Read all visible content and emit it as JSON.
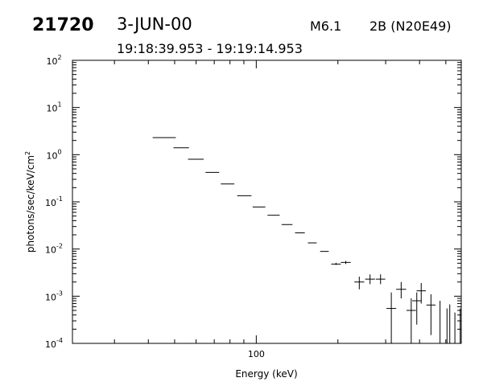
{
  "header": {
    "event_id": "21720",
    "date": "3-JUN-00",
    "goes_class": "M6.1",
    "flare_info": "2B (N20E49)",
    "time_range": "19:18:39.953 - 19:19:14.953"
  },
  "chart_data": {
    "type": "scatter",
    "style": "error-bars (horizontal energy bins, vertical flux uncertainty)",
    "xlabel": "Energy (keV)",
    "ylabel": "photons/sec/keV/cm²",
    "ylabel_base": "photons/sec/keV/cm",
    "ylabel_sup": "2",
    "x_scale": "log",
    "y_scale": "log",
    "xlim": [
      21,
      570
    ],
    "ylim": [
      0.0001,
      100
    ],
    "x_tick_labels": [
      {
        "value": 100,
        "label": "100"
      }
    ],
    "y_tick_labels": [
      {
        "value": 0.0001,
        "base": "10",
        "exp": "-4"
      },
      {
        "value": 0.001,
        "base": "10",
        "exp": "-3"
      },
      {
        "value": 0.01,
        "base": "10",
        "exp": "-2"
      },
      {
        "value": 0.1,
        "base": "10",
        "exp": "-1"
      },
      {
        "value": 1,
        "base": "10",
        "exp": "0"
      },
      {
        "value": 10,
        "base": "10",
        "exp": "1"
      },
      {
        "value": 100,
        "base": "10",
        "exp": "2"
      }
    ],
    "grid": false,
    "points": [
      {
        "x_lo": 41.5,
        "x_hi": 50.5,
        "y": 2.3,
        "y_lo": 2.3,
        "y_hi": 2.3
      },
      {
        "x_lo": 49.5,
        "x_hi": 56.5,
        "y": 1.4,
        "y_lo": 1.4,
        "y_hi": 1.4
      },
      {
        "x_lo": 56,
        "x_hi": 64,
        "y": 0.8,
        "y_lo": 0.8,
        "y_hi": 0.8
      },
      {
        "x_lo": 65,
        "x_hi": 73,
        "y": 0.42,
        "y_lo": 0.42,
        "y_hi": 0.42
      },
      {
        "x_lo": 74,
        "x_hi": 83,
        "y": 0.24,
        "y_lo": 0.24,
        "y_hi": 0.24
      },
      {
        "x_lo": 85,
        "x_hi": 96,
        "y": 0.135,
        "y_lo": 0.135,
        "y_hi": 0.135
      },
      {
        "x_lo": 97,
        "x_hi": 108,
        "y": 0.078,
        "y_lo": 0.078,
        "y_hi": 0.078
      },
      {
        "x_lo": 110,
        "x_hi": 122,
        "y": 0.052,
        "y_lo": 0.052,
        "y_hi": 0.052
      },
      {
        "x_lo": 124,
        "x_hi": 136,
        "y": 0.033,
        "y_lo": 0.033,
        "y_hi": 0.033
      },
      {
        "x_lo": 139,
        "x_hi": 151,
        "y": 0.022,
        "y_lo": 0.022,
        "y_hi": 0.022
      },
      {
        "x_lo": 155,
        "x_hi": 167,
        "y": 0.0135,
        "y_lo": 0.0135,
        "y_hi": 0.0135
      },
      {
        "x_lo": 172,
        "x_hi": 185,
        "y": 0.0089,
        "y_lo": 0.0089,
        "y_hi": 0.0089
      },
      {
        "x_lo": 189,
        "x_hi": 205,
        "y": 0.0048,
        "y_lo": 0.0046,
        "y_hi": 0.0051
      },
      {
        "x_lo": 205,
        "x_hi": 223,
        "y": 0.0052,
        "y_lo": 0.0048,
        "y_hi": 0.0056
      },
      {
        "x_lo": 230,
        "x_hi": 250,
        "y": 0.002,
        "y_lo": 0.0014,
        "y_hi": 0.0026
      },
      {
        "x_lo": 252,
        "x_hi": 274,
        "y": 0.0023,
        "y_lo": 0.0018,
        "y_hi": 0.0029
      },
      {
        "x_lo": 276,
        "x_hi": 299,
        "y": 0.0023,
        "y_lo": 0.0018,
        "y_hi": 0.0029
      },
      {
        "x_lo": 302,
        "x_hi": 328,
        "y": 0.00055,
        "y_lo": 0.0001,
        "y_hi": 0.0012
      },
      {
        "x_lo": 328,
        "x_hi": 357,
        "y": 0.0014,
        "y_lo": 0.0009,
        "y_hi": 0.002
      },
      {
        "x_lo": 358,
        "x_hi": 388,
        "y": 0.0005,
        "y_lo": 0.0001,
        "y_hi": 0.0009
      },
      {
        "x_lo": 376,
        "x_hi": 406,
        "y": 0.0008,
        "y_lo": 0.00025,
        "y_hi": 0.0012
      },
      {
        "x_lo": 390,
        "x_hi": 422,
        "y": 0.0013,
        "y_lo": 0.0007,
        "y_hi": 0.0019
      },
      {
        "x_lo": 424,
        "x_hi": 458,
        "y": 0.00065,
        "y_lo": 0.00015,
        "y_hi": 0.0011
      },
      {
        "x": 476,
        "y_lo": 0.0001,
        "y_hi": 0.0008
      },
      {
        "x": 505,
        "y_lo": 0.0001,
        "y_hi": 0.00055
      },
      {
        "x": 517,
        "y_lo": 0.0001,
        "y_hi": 0.00067
      },
      {
        "x": 540,
        "y_lo": 0.0001,
        "y_hi": 0.00045
      },
      {
        "x": 565,
        "y_lo": 0.0001,
        "y_hi": 0.00055
      }
    ]
  }
}
